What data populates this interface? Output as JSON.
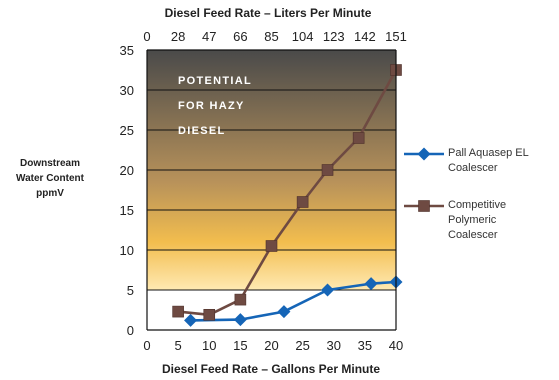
{
  "chart_data": {
    "type": "line",
    "title": "",
    "x": [
      5,
      10,
      15,
      20,
      25,
      30,
      35,
      40
    ],
    "xlabel": "Diesel Feed Rate – Gallons Per Minute",
    "xlim": [
      0,
      40
    ],
    "x_ticks": [
      0,
      5,
      10,
      15,
      20,
      25,
      30,
      35,
      40
    ],
    "x2label": "Diesel Feed Rate – Liters Per Minute",
    "x2_ticks": [
      "0",
      "28",
      "47",
      "66",
      "85",
      "104",
      "123",
      "142",
      "151"
    ],
    "ylabel_lines": [
      "Downstream",
      "Water Content",
      "ppmV"
    ],
    "ylim": [
      0,
      35
    ],
    "y_ticks": [
      0,
      5,
      10,
      15,
      20,
      25,
      30,
      35
    ],
    "grid": true,
    "legend_position": "right",
    "annotation_lines": [
      "POTENTIAL",
      "FOR HAZY",
      "DIESEL"
    ],
    "hazy_threshold": 5,
    "series": [
      {
        "name_lines": [
          "Pall Aquasep EL",
          "Coalescer"
        ],
        "marker": "diamond",
        "color": "#1565b7",
        "points": [
          [
            7,
            1.2
          ],
          [
            15,
            1.3
          ],
          [
            22,
            2.3
          ],
          [
            29,
            5.0
          ],
          [
            36,
            5.8
          ],
          [
            40,
            6.0
          ]
        ]
      },
      {
        "name_lines": [
          "Competitive",
          "Polymeric",
          "Coalescer"
        ],
        "marker": "square",
        "color": "#6e4a42",
        "points": [
          [
            5,
            2.3
          ],
          [
            10,
            1.9
          ],
          [
            15,
            3.8
          ],
          [
            20,
            10.5
          ],
          [
            25,
            16.0
          ],
          [
            29,
            20.0
          ],
          [
            34,
            24.0
          ],
          [
            40,
            32.5
          ]
        ]
      }
    ]
  }
}
